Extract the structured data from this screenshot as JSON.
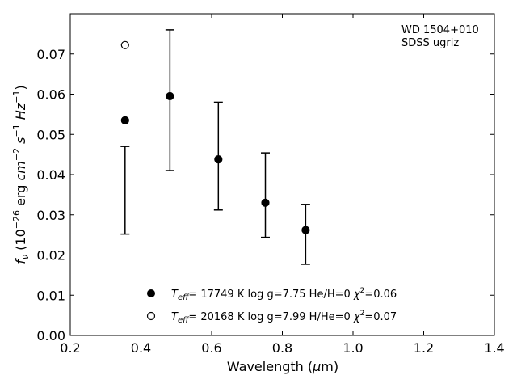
{
  "chart_data": {
    "type": "scatter",
    "xlabel_main": "Wavelength (",
    "xlabel_mu": "μ",
    "xlabel_tail": "m)",
    "ylabel_parts": {
      "f": "f",
      "nu": "ν",
      "open": " (10",
      "exp_a": "−26",
      "unit_a": " erg ",
      "cm": "cm",
      "exp_b": "−2",
      "s": " s",
      "exp_c": "−1",
      "hz": " Hz",
      "exp_d": "−1",
      "close": ")"
    },
    "xlim": [
      0.2,
      1.4
    ],
    "ylim": [
      0.0,
      0.08
    ],
    "xticks": [
      "0.2",
      "0.4",
      "0.6",
      "0.8",
      "1.0",
      "1.2",
      "1.4"
    ],
    "yticks": [
      "0.00",
      "0.01",
      "0.02",
      "0.03",
      "0.04",
      "0.05",
      "0.06",
      "0.07"
    ],
    "annotation": [
      "WD 1504+010",
      "SDSS ugriz"
    ],
    "observed": {
      "x": [
        0.355,
        0.482,
        0.619,
        0.752,
        0.866
      ],
      "y": [
        0.036,
        0.0585,
        0.0445,
        0.035,
        0.0251
      ],
      "err_low": [
        0.0252,
        0.041,
        0.0312,
        0.0244,
        0.0177
      ],
      "err_high": [
        0.047,
        0.076,
        0.058,
        0.0454,
        0.0326
      ]
    },
    "series": [
      {
        "marker": "filled",
        "x": [
          0.355,
          0.482,
          0.619,
          0.752,
          0.866
        ],
        "y": [
          0.0535,
          0.0595,
          0.0438,
          0.033,
          0.0262
        ],
        "legend": {
          "t": "T",
          "sub": "eff",
          "rest": "= 17749 K  log g=7.75  He/H=0  ",
          "chi": "χ",
          "sup": "2",
          "chi_val": "=0.06"
        }
      },
      {
        "marker": "open",
        "x": [
          0.355
        ],
        "y": [
          0.0722
        ],
        "legend": {
          "t": "T",
          "sub": "eff",
          "rest": "= 20168 K  log g=7.99  H/He=0  ",
          "chi": "χ",
          "sup": "2",
          "chi_val": "=0.07"
        }
      }
    ],
    "legend_position": "bottom-center",
    "grid": false
  }
}
